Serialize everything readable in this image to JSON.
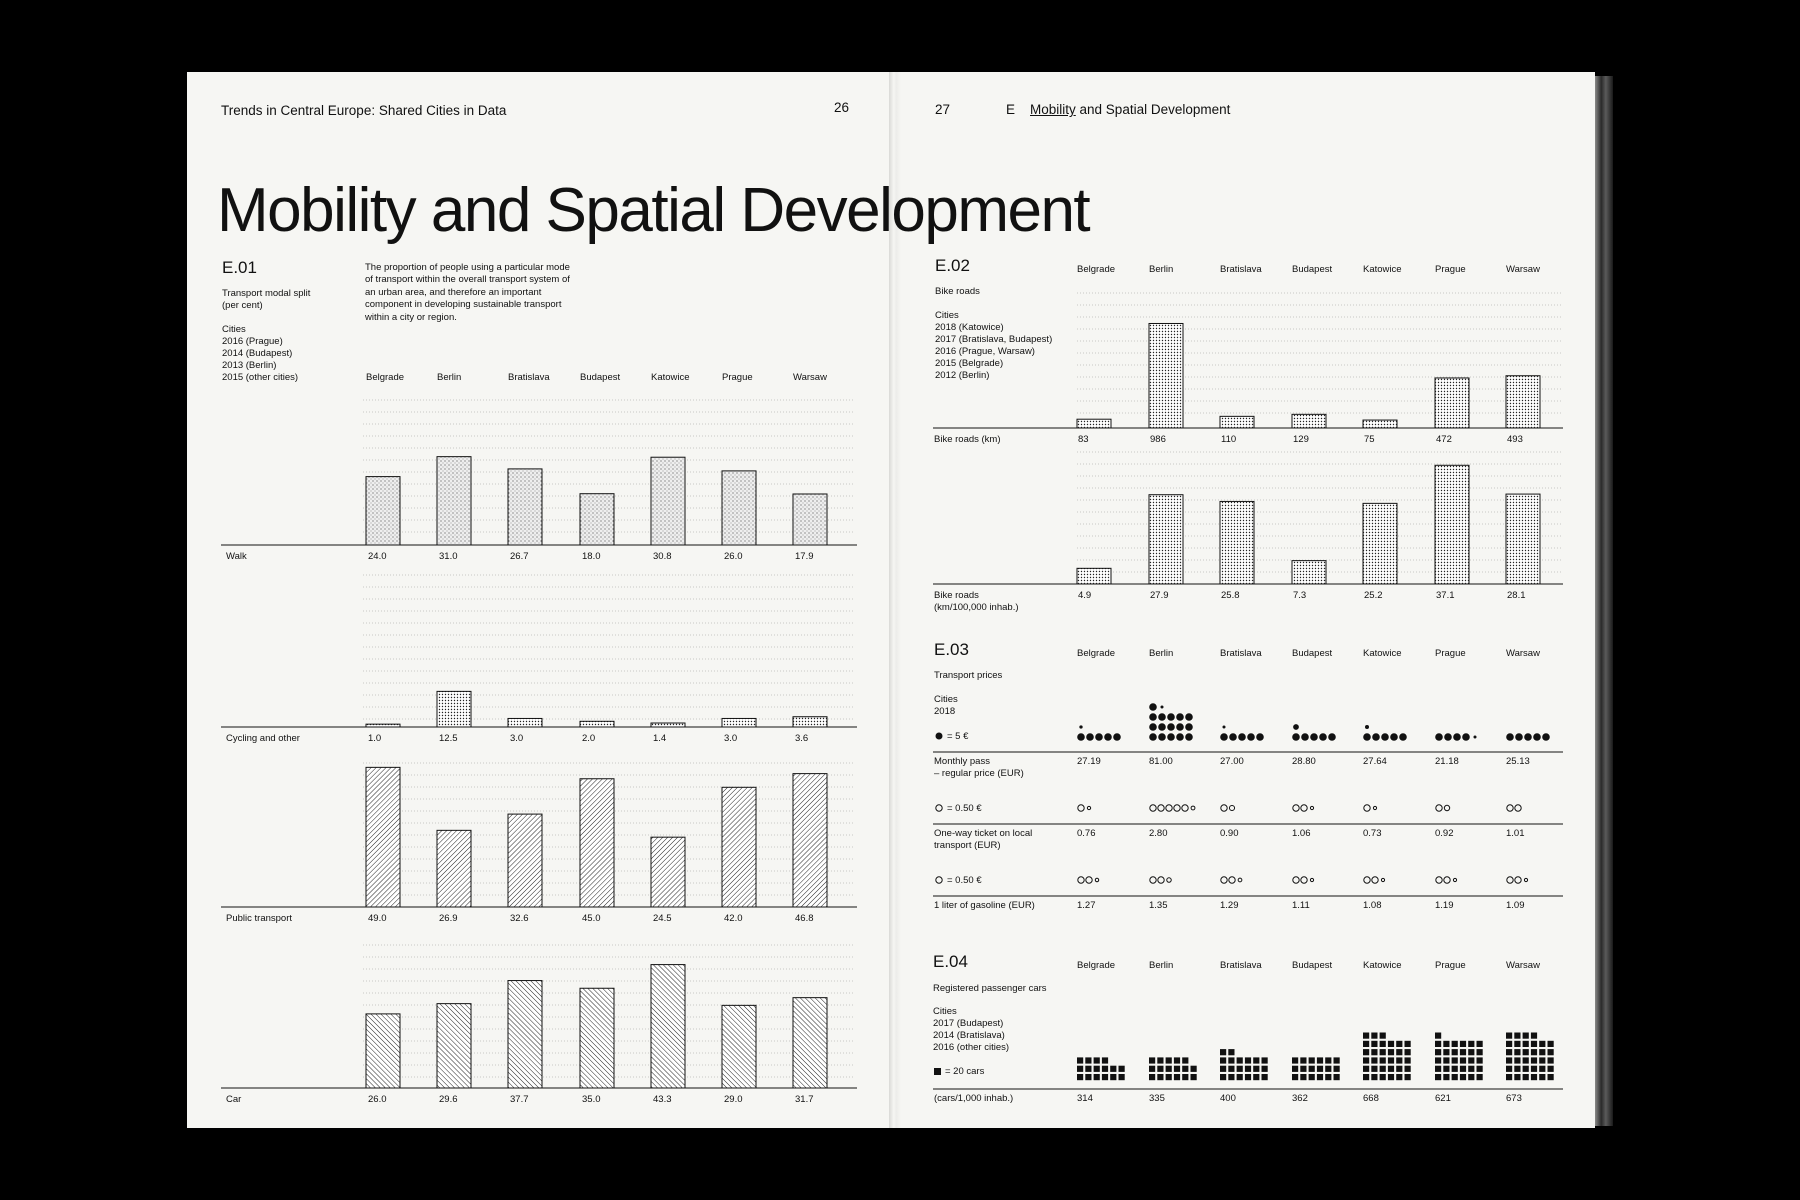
{
  "spread": {
    "left_running_title": "Trends in Central Europe: Shared Cities in Data",
    "left_page_number": "26",
    "right_page_number": "27",
    "right_section_letter": "E",
    "right_section_link": "Mobility",
    "right_section_rest": "and Spatial Development",
    "title": "Mobility and Spatial Development"
  },
  "e01": {
    "code": "E.01",
    "subtitle": "Transport modal split\n(per cent)",
    "years": "Cities\n2016 (Prague)\n2014 (Budapest)\n2013 (Berlin)\n2015 (other cities)",
    "description": "The proportion of people using a particular mode of transport within the overall transport system of an urban area, and therefore an important component in developing sustainable transport within a city or region."
  },
  "e02": {
    "code": "E.02",
    "subtitle": "Bike roads",
    "years": "Cities\n2018 (Katowice)\n2017 (Bratislava, Budapest)\n2016 (Prague, Warsaw)\n2015 (Belgrade)\n2012 (Berlin)"
  },
  "e03": {
    "code": "E.03",
    "subtitle": "Transport prices",
    "years": "Cities\n2018",
    "legend_big": "= 5 €",
    "legend_coin1": "= 0.50 €",
    "legend_coin2": "= 0.50 €"
  },
  "e04": {
    "code": "E.04",
    "subtitle": "Registered passenger cars",
    "years": "Cities\n2017 (Budapest)\n2014 (Bratislava)\n2016 (other cities)",
    "legend": "= 20 cars"
  },
  "chart_data": [
    {
      "id": "E.01",
      "type": "bar",
      "categories": [
        "Belgrade",
        "Berlin",
        "Bratislava",
        "Budapest",
        "Katowice",
        "Prague",
        "Warsaw"
      ],
      "series": [
        {
          "name": "Walk",
          "values": [
            24.0,
            31.0,
            26.7,
            18.0,
            30.8,
            26.0,
            17.9
          ],
          "labels": [
            "24.0",
            "31.0",
            "26.7",
            "18.0",
            "30.8",
            "26.0",
            "17.9"
          ]
        },
        {
          "name": "Cycling and other",
          "values": [
            1.0,
            12.5,
            3.0,
            2.0,
            1.4,
            3.0,
            3.6
          ],
          "labels": [
            "1.0",
            "12.5",
            "3.0",
            "2.0",
            "1.4",
            "3.0",
            "3.6"
          ]
        },
        {
          "name": "Public transport",
          "values": [
            49.0,
            26.9,
            32.6,
            45.0,
            24.5,
            42.0,
            46.8
          ],
          "labels": [
            "49.0",
            "26.9",
            "32.6",
            "45.0",
            "24.5",
            "42.0",
            "46.8"
          ]
        },
        {
          "name": "Car",
          "values": [
            26.0,
            29.6,
            37.7,
            35.0,
            43.3,
            29.0,
            31.7
          ],
          "labels": [
            "26.0",
            "29.6",
            "37.7",
            "35.0",
            "43.3",
            "29.0",
            "31.7"
          ]
        }
      ]
    },
    {
      "id": "E.02",
      "type": "bar",
      "categories": [
        "Belgrade",
        "Berlin",
        "Bratislava",
        "Budapest",
        "Katowice",
        "Prague",
        "Warsaw"
      ],
      "series": [
        {
          "name": "Bike roads (km)",
          "values": [
            83,
            986,
            110,
            129,
            75,
            472,
            493
          ],
          "labels": [
            "83",
            "986",
            "110",
            "129",
            "75",
            "472",
            "493"
          ]
        },
        {
          "name": "Bike roads\n(km/100,000 inhab.)",
          "values": [
            4.9,
            27.9,
            25.8,
            7.3,
            25.2,
            37.1,
            28.1
          ],
          "labels": [
            "4.9",
            "27.9",
            "25.8",
            "7.3",
            "25.2",
            "37.1",
            "28.1"
          ]
        }
      ]
    },
    {
      "id": "E.03",
      "type": "table",
      "categories": [
        "Belgrade",
        "Berlin",
        "Bratislava",
        "Budapest",
        "Katowice",
        "Prague",
        "Warsaw"
      ],
      "series": [
        {
          "name": "Monthly pass\n– regular price (EUR)",
          "values": [
            27.19,
            81.0,
            27.0,
            28.8,
            27.64,
            21.18,
            25.13
          ],
          "labels": [
            "27.19",
            "81.00",
            "27.00",
            "28.80",
            "27.64",
            "21.18",
            "25.13"
          ],
          "unit_value": 5
        },
        {
          "name": "One-way ticket on local\ntransport (EUR)",
          "values": [
            0.76,
            2.8,
            0.9,
            1.06,
            0.73,
            0.92,
            1.01
          ],
          "labels": [
            "0.76",
            "2.80",
            "0.90",
            "1.06",
            "0.73",
            "0.92",
            "1.01"
          ],
          "unit_value": 0.5
        },
        {
          "name": "1 liter of gasoline (EUR)",
          "values": [
            1.27,
            1.35,
            1.29,
            1.11,
            1.08,
            1.19,
            1.09
          ],
          "labels": [
            "1.27",
            "1.35",
            "1.29",
            "1.11",
            "1.08",
            "1.19",
            "1.09"
          ],
          "unit_value": 0.5
        }
      ]
    },
    {
      "id": "E.04",
      "type": "table",
      "categories": [
        "Belgrade",
        "Berlin",
        "Bratislava",
        "Budapest",
        "Katowice",
        "Prague",
        "Warsaw"
      ],
      "series": [
        {
          "name": "(cars/1,000 inhab.)",
          "values": [
            314,
            335,
            400,
            362,
            668,
            621,
            673
          ],
          "labels": [
            "314",
            "335",
            "400",
            "362",
            "668",
            "621",
            "673"
          ],
          "unit_value": 20
        }
      ]
    }
  ]
}
